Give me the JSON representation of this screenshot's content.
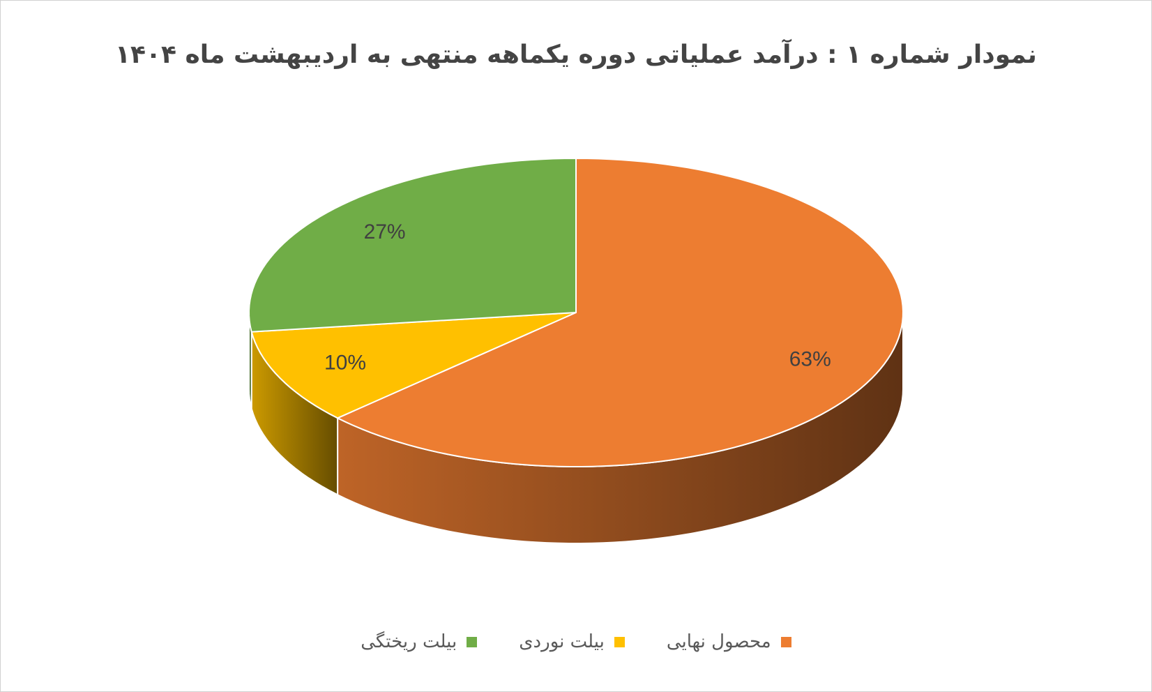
{
  "chart_data": {
    "type": "pie",
    "title": "نمودار شماره ۱ : درآمد عملیاتی دوره یکماهه منتهی به اردیبهشت ماه ۱۴۰۴",
    "categories": [
      "محصول نهایی",
      "بیلت نوردی",
      "بیلت ریختگی"
    ],
    "values": [
      63,
      10,
      27
    ],
    "value_labels": [
      "63%",
      "10%",
      "27%"
    ],
    "colors": [
      "#ed7d31",
      "#ffc000",
      "#70ad47"
    ],
    "legend": "bottom"
  }
}
